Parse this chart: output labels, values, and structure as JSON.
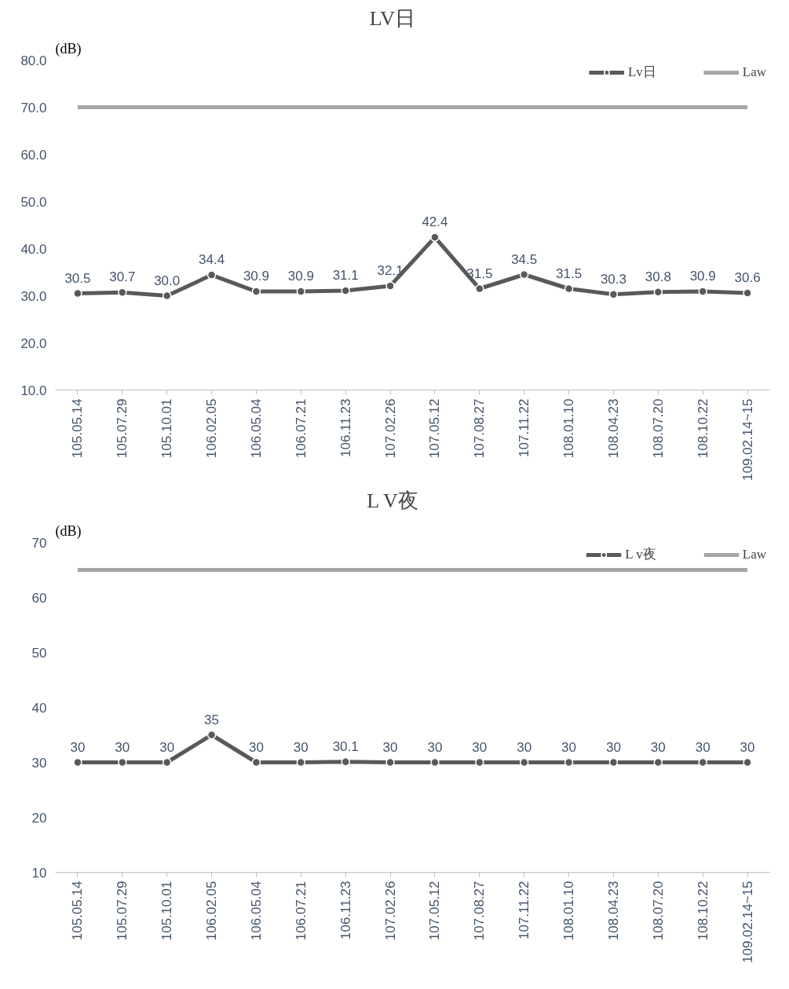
{
  "chart_data": [
    {
      "type": "line",
      "title": "LV日",
      "ylabel": "(dB)",
      "categories": [
        "105.05.14",
        "105.07.29",
        "105.10.01",
        "106.02.05",
        "106.05.04",
        "106.07.21",
        "106.11.23",
        "107.02.26",
        "107.05.12",
        "107.08.27",
        "107.11.22",
        "108.01.10",
        "108.04.23",
        "108.07.20",
        "108.10.22",
        "109.02.14~15"
      ],
      "series": [
        {
          "name": "Lv日",
          "color": "#595959",
          "marker": "circle",
          "values": [
            30.5,
            30.7,
            30.0,
            34.4,
            30.9,
            30.9,
            31.1,
            32.1,
            42.4,
            31.5,
            34.5,
            31.5,
            30.3,
            30.8,
            30.9,
            30.6
          ],
          "value_labels": [
            "30.5",
            "30.7",
            "30.0",
            "34.4",
            "30.9",
            "30.9",
            "31.1",
            "32.1",
            "42.4",
            "31.5",
            "34.5",
            "31.5",
            "30.3",
            "30.8",
            "30.9",
            "30.6"
          ]
        },
        {
          "name": "Law",
          "color": "#a6a6a6",
          "marker": "none",
          "values": [
            70,
            70,
            70,
            70,
            70,
            70,
            70,
            70,
            70,
            70,
            70,
            70,
            70,
            70,
            70,
            70
          ]
        }
      ],
      "ylim": [
        10,
        80
      ],
      "yticks": [
        {
          "value": 10,
          "label": "10.0"
        },
        {
          "value": 20,
          "label": "20.0"
        },
        {
          "value": 30,
          "label": "30.0"
        },
        {
          "value": 40,
          "label": "40.0"
        },
        {
          "value": 50,
          "label": "50.0"
        },
        {
          "value": 60,
          "label": "60.0"
        },
        {
          "value": 70,
          "label": "70.0"
        },
        {
          "value": 80,
          "label": "80.0"
        }
      ],
      "grid": false,
      "legend": "top right"
    },
    {
      "type": "line",
      "title": "L V夜",
      "ylabel": "(dB)",
      "categories": [
        "105.05.14",
        "105.07.29",
        "105.10.01",
        "106.02.05",
        "106.05.04",
        "106.07.21",
        "106.11.23",
        "107.02.26",
        "107.05.12",
        "107.08.27",
        "107.11.22",
        "108.01.10",
        "108.04.23",
        "108.07.20",
        "108.10.22",
        "109.02.14~15"
      ],
      "series": [
        {
          "name": "L v夜",
          "color": "#595959",
          "marker": "circle",
          "values": [
            30,
            30,
            30,
            35,
            30,
            30,
            30.1,
            30,
            30,
            30,
            30,
            30,
            30,
            30,
            30,
            30
          ],
          "value_labels": [
            "30",
            "30",
            "30",
            "35",
            "30",
            "30",
            "30.1",
            "30",
            "30",
            "30",
            "30",
            "30",
            "30",
            "30",
            "30",
            "30"
          ]
        },
        {
          "name": "Law",
          "color": "#a6a6a6",
          "marker": "none",
          "values": [
            65,
            65,
            65,
            65,
            65,
            65,
            65,
            65,
            65,
            65,
            65,
            65,
            65,
            65,
            65,
            65
          ]
        }
      ],
      "ylim": [
        10,
        70
      ],
      "yticks": [
        10,
        20,
        30,
        40,
        50,
        60,
        70
      ],
      "grid": false,
      "legend": "top right"
    }
  ]
}
